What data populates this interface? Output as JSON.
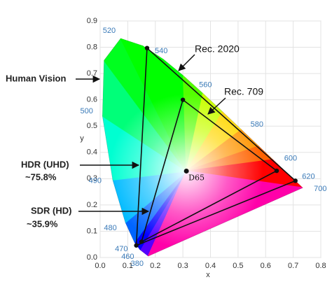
{
  "chart_data": {
    "type": "chromaticity",
    "xlabel": "x",
    "ylabel": "y",
    "xlim": [
      0,
      0.8
    ],
    "ylim": [
      0,
      0.9
    ],
    "xticks": [
      {
        "value": 0,
        "label": "0.0"
      },
      0.1,
      0.2,
      0.3,
      0.4,
      0.5,
      0.6,
      0.7,
      0.8
    ],
    "yticks": [
      {
        "value": 0,
        "label": "0.0"
      },
      0.1,
      0.2,
      0.3,
      0.4,
      0.5,
      0.6,
      0.7,
      0.8,
      0.9
    ],
    "grid": true,
    "locus": {
      "x": [
        0.1741,
        0.144,
        0.1241,
        0.0913,
        0.0454,
        0.0082,
        0.0139,
        0.0743,
        0.1547,
        0.2296,
        0.3016,
        0.3731,
        0.4441,
        0.5125,
        0.5752,
        0.627,
        0.6915,
        0.7347
      ],
      "y": [
        0.005,
        0.0297,
        0.0578,
        0.1327,
        0.295,
        0.5384,
        0.7502,
        0.8338,
        0.8059,
        0.7543,
        0.6923,
        0.6245,
        0.5547,
        0.4866,
        0.4242,
        0.3725,
        0.3083,
        0.2653
      ],
      "labels": [
        380,
        460,
        470,
        480,
        490,
        500,
        null,
        520,
        null,
        540,
        null,
        560,
        null,
        580,
        null,
        600,
        620,
        700
      ]
    },
    "gamuts": [
      {
        "name": "Rec. 2020",
        "x": [
          0.708,
          0.17,
          0.131
        ],
        "y": [
          0.292,
          0.797,
          0.046
        ]
      },
      {
        "name": "Rec. 709",
        "x": [
          0.64,
          0.3,
          0.15
        ],
        "y": [
          0.33,
          0.6,
          0.06
        ]
      }
    ],
    "white_point": {
      "name": "D65",
      "x": 0.3127,
      "y": 0.329
    },
    "annotations": [
      "Human Vision",
      "HDR (UHD)",
      "~75.8%",
      "SDR (HD)",
      "~35.9%"
    ]
  }
}
